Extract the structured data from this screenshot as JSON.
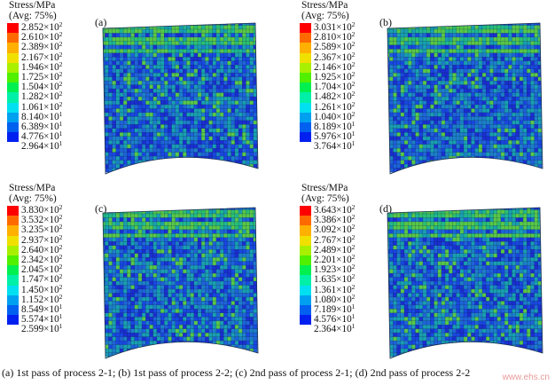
{
  "legend_colors": [
    "#ff0000",
    "#ff6a00",
    "#ffb000",
    "#f0e000",
    "#a8f000",
    "#50f000",
    "#00f050",
    "#00f0a8",
    "#00e0f0",
    "#00a0f0",
    "#0060f0",
    "#0020f0",
    "#0000ff"
  ],
  "panels": [
    {
      "label": "(a)",
      "legend_title_line1": "Stress/MPa",
      "legend_title_line2": "(Avg: 75%)",
      "values": [
        {
          "mant": "2.852×10",
          "exp": "2"
        },
        {
          "mant": "2.610×10",
          "exp": "2"
        },
        {
          "mant": "2.389×10",
          "exp": "2"
        },
        {
          "mant": "2.167×10",
          "exp": "2"
        },
        {
          "mant": "1.946×10",
          "exp": "2"
        },
        {
          "mant": "1.725×10",
          "exp": "2"
        },
        {
          "mant": "1.504×10",
          "exp": "2"
        },
        {
          "mant": "1.282×10",
          "exp": "2"
        },
        {
          "mant": "1.061×10",
          "exp": "2"
        },
        {
          "mant": "8.140×10",
          "exp": "1"
        },
        {
          "mant": "6.389×10",
          "exp": "1"
        },
        {
          "mant": "4.776×10",
          "exp": "1"
        },
        {
          "mant": "2.964×10",
          "exp": "1"
        }
      ]
    },
    {
      "label": "(b)",
      "legend_title_line1": "Stress/MPa",
      "legend_title_line2": "(Avg: 75%)",
      "values": [
        {
          "mant": "3.031×10",
          "exp": "2"
        },
        {
          "mant": "2.810×10",
          "exp": "2"
        },
        {
          "mant": "2.589×10",
          "exp": "2"
        },
        {
          "mant": "2.367×10",
          "exp": "2"
        },
        {
          "mant": "2.146×10",
          "exp": "2"
        },
        {
          "mant": "1.925×10",
          "exp": "2"
        },
        {
          "mant": "1.704×10",
          "exp": "2"
        },
        {
          "mant": "1.482×10",
          "exp": "2"
        },
        {
          "mant": "1.261×10",
          "exp": "2"
        },
        {
          "mant": "1.040×10",
          "exp": "2"
        },
        {
          "mant": "8.189×10",
          "exp": "1"
        },
        {
          "mant": "5.976×10",
          "exp": "1"
        },
        {
          "mant": "3.764×10",
          "exp": "1"
        }
      ]
    },
    {
      "label": "(c)",
      "legend_title_line1": "Stress/MPa",
      "legend_title_line2": "(Avg: 75%)",
      "values": [
        {
          "mant": "3.830×10",
          "exp": "2"
        },
        {
          "mant": "3.532×10",
          "exp": "2"
        },
        {
          "mant": "3.235×10",
          "exp": "2"
        },
        {
          "mant": "2.937×10",
          "exp": "2"
        },
        {
          "mant": "2.640×10",
          "exp": "2"
        },
        {
          "mant": "2.342×10",
          "exp": "2"
        },
        {
          "mant": "2.045×10",
          "exp": "2"
        },
        {
          "mant": "1.747×10",
          "exp": "2"
        },
        {
          "mant": "1.450×10",
          "exp": "2"
        },
        {
          "mant": "1.152×10",
          "exp": "2"
        },
        {
          "mant": "8.549×10",
          "exp": "1"
        },
        {
          "mant": "5.574×10",
          "exp": "1"
        },
        {
          "mant": "2.599×10",
          "exp": "1"
        }
      ]
    },
    {
      "label": "(d)",
      "legend_title_line1": "Stress/MPa",
      "legend_title_line2": "(Avg: 75%)",
      "values": [
        {
          "mant": "3.643×10",
          "exp": "2"
        },
        {
          "mant": "3.386×10",
          "exp": "2"
        },
        {
          "mant": "3.092×10",
          "exp": "2"
        },
        {
          "mant": "2.767×10",
          "exp": "2"
        },
        {
          "mant": "2.489×10",
          "exp": "2"
        },
        {
          "mant": "2.201×10",
          "exp": "2"
        },
        {
          "mant": "1.923×10",
          "exp": "2"
        },
        {
          "mant": "1.635×10",
          "exp": "2"
        },
        {
          "mant": "1.361×10",
          "exp": "2"
        },
        {
          "mant": "1.080×10",
          "exp": "2"
        },
        {
          "mant": "7.189×10",
          "exp": "1"
        },
        {
          "mant": "4.576×10",
          "exp": "1"
        },
        {
          "mant": "2.364×10",
          "exp": "1"
        }
      ]
    }
  ],
  "caption": "(a) 1st pass of process 2-1; (b) 1st pass of process 2-2; (c) 2nd pass of process 2-1; (d) 2nd pass of process 2-2",
  "watermark": "www.ehs.cn"
}
